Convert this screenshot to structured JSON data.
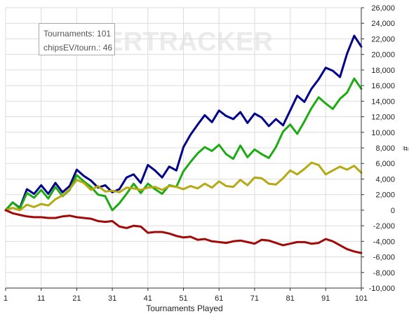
{
  "watermark": "POKERTRACKER",
  "info_box": {
    "tournaments": "Tournaments: 101",
    "chipsev": "chipsEV/tourn.: 46"
  },
  "colors": {
    "blue": "#00008b",
    "green": "#1eaa14",
    "olive": "#b4aa14",
    "red": "#a00a0a",
    "grid": "#dcdcdc"
  },
  "chart_data": {
    "type": "line",
    "xlabel": "Tournaments Played",
    "ylabel": "#",
    "xlim": [
      1,
      101
    ],
    "ylim": [
      -10000,
      26000
    ],
    "x_ticks": [
      "1",
      "11",
      "21",
      "31",
      "41",
      "51",
      "61",
      "71",
      "81",
      "91",
      "101"
    ],
    "y_ticks": [
      "26,000",
      "24,000",
      "22,000",
      "20,000",
      "18,000",
      "16,000",
      "14,000",
      "12,000",
      "10,000",
      "8,000",
      "6,000",
      "4,000",
      "2,000",
      "0",
      "-2,000",
      "-4,000",
      "-6,000",
      "-8,000",
      "-10,000"
    ],
    "grid": true,
    "y_axis_side": "right",
    "series": [
      {
        "color": "#00008b",
        "x": [
          1,
          3,
          5,
          7,
          9,
          11,
          13,
          15,
          17,
          19,
          21,
          23,
          25,
          27,
          29,
          31,
          33,
          35,
          37,
          39,
          41,
          43,
          45,
          47,
          49,
          51,
          53,
          55,
          57,
          59,
          61,
          63,
          65,
          67,
          69,
          71,
          73,
          75,
          77,
          79,
          81,
          83,
          85,
          87,
          89,
          91,
          93,
          95,
          97,
          99,
          101
        ],
        "y": [
          0,
          1000,
          300,
          2700,
          2100,
          3200,
          2100,
          3500,
          2300,
          3100,
          5200,
          4400,
          3800,
          2900,
          3200,
          2300,
          2700,
          4200,
          4600,
          3500,
          5800,
          5100,
          4200,
          5600,
          5100,
          8100,
          9700,
          11000,
          12200,
          11300,
          12800,
          12100,
          11700,
          12600,
          11200,
          12400,
          11900,
          10800,
          11700,
          10900,
          12800,
          14700,
          13900,
          15600,
          16800,
          18300,
          17900,
          17100,
          20100,
          22400,
          21000
        ]
      },
      {
        "color": "#1eaa14",
        "x": [
          1,
          3,
          5,
          7,
          9,
          11,
          13,
          15,
          17,
          19,
          21,
          23,
          25,
          27,
          29,
          31,
          33,
          35,
          37,
          39,
          41,
          43,
          45,
          47,
          49,
          51,
          53,
          55,
          57,
          59,
          61,
          63,
          65,
          67,
          69,
          71,
          73,
          75,
          77,
          79,
          81,
          83,
          85,
          87,
          89,
          91,
          93,
          95,
          97,
          99,
          101
        ],
        "y": [
          0,
          1000,
          200,
          2200,
          1600,
          2600,
          1500,
          3000,
          1800,
          2600,
          4500,
          3700,
          3000,
          2000,
          1800,
          0,
          900,
          2100,
          3400,
          2200,
          3400,
          2700,
          2100,
          3200,
          3000,
          5000,
          6200,
          7300,
          8100,
          7600,
          8400,
          7200,
          6600,
          8300,
          6800,
          7800,
          7200,
          6700,
          8100,
          10100,
          11000,
          9800,
          11400,
          13100,
          14500,
          13700,
          13000,
          14300,
          15100,
          16900,
          15600
        ]
      },
      {
        "color": "#b4aa14",
        "x": [
          1,
          3,
          5,
          7,
          9,
          11,
          13,
          15,
          17,
          19,
          21,
          23,
          25,
          27,
          29,
          31,
          33,
          35,
          37,
          39,
          41,
          43,
          45,
          47,
          49,
          51,
          53,
          55,
          57,
          59,
          61,
          63,
          65,
          67,
          69,
          71,
          73,
          75,
          77,
          79,
          81,
          83,
          85,
          87,
          89,
          91,
          93,
          95,
          97,
          99,
          101
        ],
        "y": [
          0,
          300,
          0,
          700,
          400,
          800,
          600,
          1400,
          1900,
          2700,
          3900,
          3500,
          2600,
          3100,
          2400,
          2500,
          2300,
          2900,
          2800,
          2600,
          2900,
          3000,
          2600,
          3100,
          3000,
          2700,
          3100,
          2800,
          3400,
          2900,
          3700,
          3100,
          3000,
          3900,
          3200,
          4200,
          4100,
          3400,
          3300,
          4100,
          5100,
          4600,
          5300,
          6100,
          5800,
          4600,
          5100,
          5600,
          5200,
          5700,
          4800
        ]
      },
      {
        "color": "#a00a0a",
        "x": [
          1,
          3,
          5,
          7,
          9,
          11,
          13,
          15,
          17,
          19,
          21,
          23,
          25,
          27,
          29,
          31,
          33,
          35,
          37,
          39,
          41,
          43,
          45,
          47,
          49,
          51,
          53,
          55,
          57,
          59,
          61,
          63,
          65,
          67,
          69,
          71,
          73,
          75,
          77,
          79,
          81,
          83,
          85,
          87,
          89,
          91,
          93,
          95,
          97,
          99,
          101
        ],
        "y": [
          0,
          -400,
          -600,
          -800,
          -900,
          -900,
          -1000,
          -1000,
          -800,
          -700,
          -900,
          -1000,
          -1100,
          -1400,
          -1500,
          -1400,
          -2100,
          -2300,
          -2000,
          -2100,
          -2900,
          -2800,
          -2800,
          -3000,
          -3300,
          -3500,
          -3400,
          -3800,
          -3700,
          -4000,
          -4100,
          -4200,
          -4000,
          -3900,
          -4100,
          -4300,
          -3800,
          -3900,
          -4200,
          -4500,
          -4300,
          -4100,
          -4100,
          -4300,
          -4200,
          -3700,
          -4000,
          -4500,
          -5000,
          -5300,
          -5500
        ]
      }
    ]
  }
}
